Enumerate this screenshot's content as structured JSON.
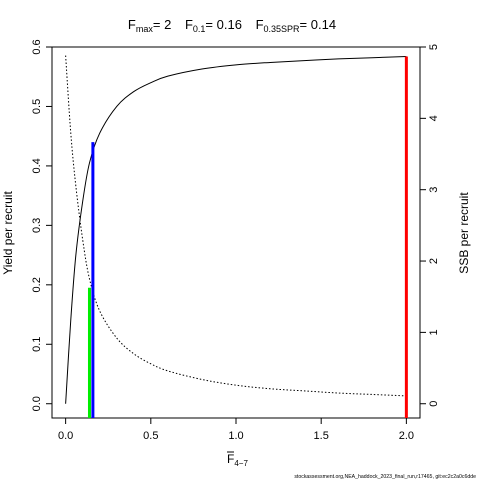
{
  "chart_data": {
    "type": "line",
    "title": {
      "fmax": {
        "sym": "F",
        "sub": "max",
        "val": "= 2"
      },
      "f01": {
        "sym": "F",
        "sub": "0.1",
        "val": "= 0.16"
      },
      "fspr": {
        "sym": "F",
        "sub": "0.35SPR",
        "val": "= 0.14"
      }
    },
    "xlabel": {
      "sym": "F",
      "sub": "4−7"
    },
    "ylabel_left": "Yield per recruit",
    "ylabel_right": "SSB per recruit",
    "footer": "stockassessment.org,NEA_haddock_2023_final_run,r17465, git:ec2c2a0c6dde",
    "xlim": [
      -0.08,
      2.08
    ],
    "ylim_left": [
      -0.024,
      0.6
    ],
    "ylim_right": [
      -0.2,
      5
    ],
    "x_ticks": [
      0.0,
      0.5,
      1.0,
      1.5,
      2.0
    ],
    "x_tick_labels": [
      "0.0",
      "0.5",
      "1.0",
      "1.5",
      "2.0"
    ],
    "y_left_ticks": [
      0.0,
      0.1,
      0.2,
      0.3,
      0.4,
      0.5,
      0.6
    ],
    "y_left_tick_labels": [
      "0.0",
      "0.1",
      "0.2",
      "0.3",
      "0.4",
      "0.5",
      "0.6"
    ],
    "y_right_ticks": [
      0,
      1,
      2,
      3,
      4,
      5
    ],
    "y_right_tick_labels": [
      "0",
      "1",
      "2",
      "3",
      "4",
      "5"
    ],
    "series": [
      {
        "axis": "left",
        "style": "solid",
        "color": "#000000",
        "x": [
          0.0,
          0.03,
          0.06,
          0.1,
          0.14,
          0.2,
          0.3,
          0.4,
          0.5,
          0.6,
          0.8,
          1.0,
          1.2,
          1.4,
          1.6,
          1.8,
          2.0
        ],
        "y": [
          0.0,
          0.14,
          0.25,
          0.34,
          0.405,
          0.455,
          0.5,
          0.525,
          0.54,
          0.551,
          0.563,
          0.57,
          0.574,
          0.577,
          0.58,
          0.582,
          0.584
        ]
      },
      {
        "axis": "right",
        "style": "dotted",
        "color": "#000000",
        "x": [
          0.0,
          0.03,
          0.06,
          0.1,
          0.14,
          0.2,
          0.3,
          0.4,
          0.5,
          0.6,
          0.8,
          1.0,
          1.2,
          1.4,
          1.6,
          1.8,
          2.0
        ],
        "y": [
          4.88,
          3.8,
          3.05,
          2.3,
          1.75,
          1.3,
          0.92,
          0.7,
          0.56,
          0.46,
          0.34,
          0.26,
          0.21,
          0.18,
          0.15,
          0.13,
          0.11
        ]
      }
    ],
    "reference_lines": [
      {
        "name": "Fmax",
        "x": 2.0,
        "y": 0.584,
        "color": "#ff0000"
      },
      {
        "name": "F0.1",
        "x": 0.16,
        "y": 0.44,
        "color": "#0000ff"
      },
      {
        "name": "F0.35SPR",
        "x": 0.14,
        "y": 0.195,
        "color": "#00ee00"
      }
    ]
  }
}
